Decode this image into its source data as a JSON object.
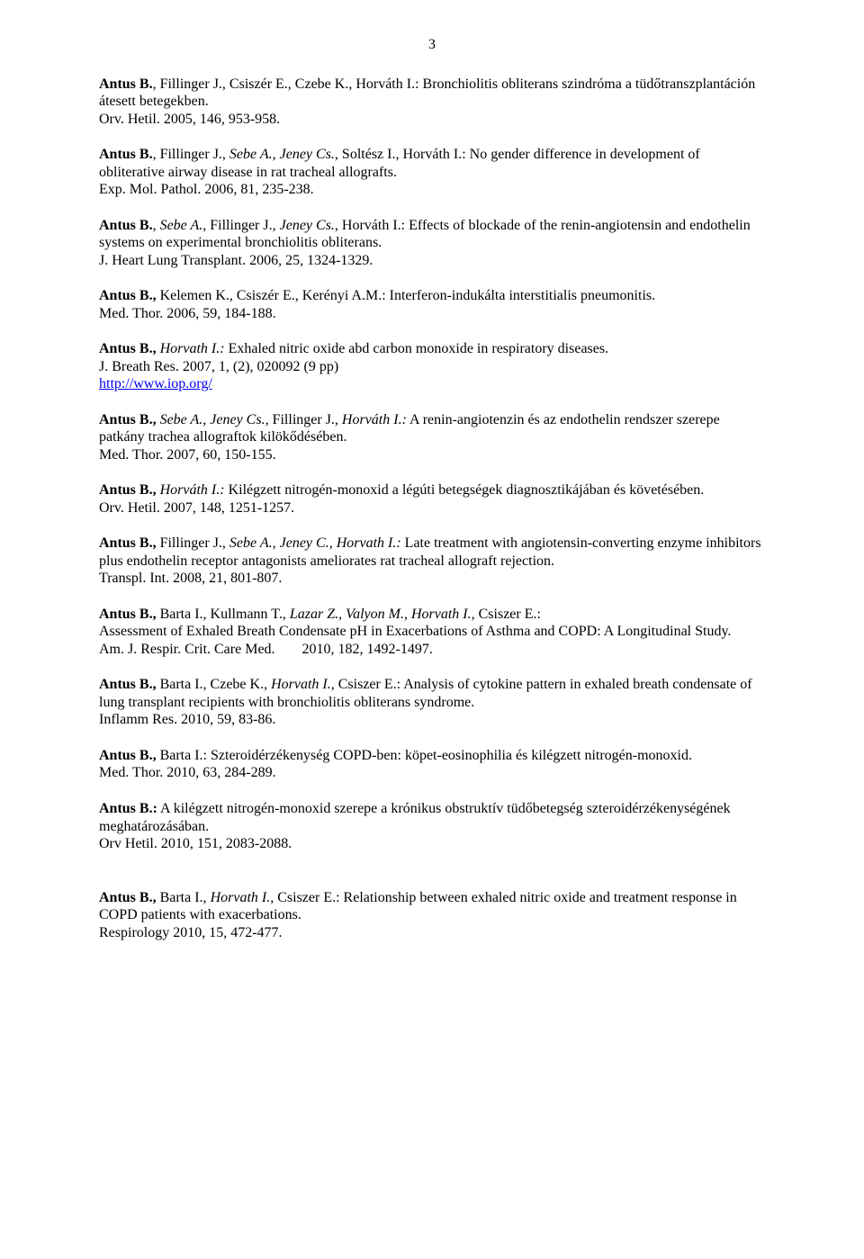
{
  "pageNumber": "3",
  "entries": [
    {
      "lines": [
        [
          {
            "t": "Antus B.",
            "b": true
          },
          {
            "t": ", Fillinger J., Csiszér E., Czebe K., Horváth I.: Bronchiolitis obliterans szindróma a tüdőtranszplantáción átesett betegekben."
          }
        ],
        [
          {
            "t": "Orv. Hetil. 2005, 146, 953-958."
          }
        ]
      ]
    },
    {
      "lines": [
        [
          {
            "t": "Antus B.",
            "b": true
          },
          {
            "t": ", Fillinger J., "
          },
          {
            "t": "Sebe A., Jeney Cs.",
            "i": true
          },
          {
            "t": ", Soltész I., Horváth I.: No gender difference in development of obliterative airway disease in rat tracheal allografts."
          }
        ],
        [
          {
            "t": "Exp. Mol. Pathol. 2006, 81, 235-238."
          }
        ]
      ]
    },
    {
      "lines": [
        [
          {
            "t": "Antus B.",
            "b": true
          },
          {
            "t": ", "
          },
          {
            "t": "Sebe A.",
            "i": true
          },
          {
            "t": ", Fillinger J., "
          },
          {
            "t": "Jeney Cs.",
            "i": true
          },
          {
            "t": ", Horváth I.: Effects of blockade of the renin-angiotensin and endothelin systems on experimental bronchiolitis obliterans."
          }
        ],
        [
          {
            "t": "J. Heart Lung Transplant. 2006, 25, 1324-1329."
          }
        ]
      ]
    },
    {
      "lines": [
        [
          {
            "t": "Antus B.,",
            "b": true
          },
          {
            "t": " Kelemen K., Csiszér E., Kerényi A.M.: Interferon-indukálta interstitialis pneumonitis."
          }
        ],
        [
          {
            "t": "Med. Thor. 2006, 59, 184-188."
          }
        ]
      ]
    },
    {
      "lines": [
        [
          {
            "t": "Antus B.,",
            "b": true
          },
          {
            "t": " "
          },
          {
            "t": "Horvath I.:",
            "i": true
          },
          {
            "t": " Exhaled nitric oxide abd carbon monoxide in respiratory diseases."
          }
        ],
        [
          {
            "t": "J. Breath Res. 2007, 1, (2), 020092 (9 pp)"
          }
        ],
        [
          {
            "link": "http://www.iop.org/"
          }
        ]
      ]
    },
    {
      "lines": [
        [
          {
            "t": "Antus B.,",
            "b": true
          },
          {
            "t": " "
          },
          {
            "t": "Sebe A., Jeney Cs., ",
            "i": true
          },
          {
            "t": "Fillinger J."
          },
          {
            "t": ", Horváth I.:",
            "i": true
          },
          {
            "t": " A renin-angiotenzin és az endothelin rendszer szerepe patkány trachea allograftok kilökődésében."
          }
        ],
        [
          {
            "t": "Med. Thor. 2007, 60, 150-155."
          }
        ]
      ]
    },
    {
      "lines": [
        [
          {
            "t": "Antus B.,",
            "b": true
          },
          {
            "t": " "
          },
          {
            "t": "Horváth I.:",
            "i": true
          },
          {
            "t": " Kilégzett nitrogén-monoxid a légúti betegségek diagnosztikájában és követésében."
          }
        ],
        [
          {
            "t": "Orv. Hetil. 2007, 148, 1251-1257."
          }
        ]
      ]
    },
    {
      "lines": [
        [
          {
            "t": "Antus B.,",
            "b": true
          },
          {
            "t": " Fillinger J., "
          },
          {
            "t": "Sebe A., Jeney C., Horvath I.:",
            "i": true
          },
          {
            "t": " Late treatment with angiotensin-converting enzyme inhibitors plus endothelin receptor antagonists ameliorates rat tracheal allograft rejection."
          }
        ],
        [
          {
            "t": "Transpl. Int. 2008, 21, 801-807."
          }
        ]
      ]
    },
    {
      "lines": [
        [
          {
            "t": "Antus B.,",
            "b": true
          },
          {
            "t": " Barta I., Kullmann T., "
          },
          {
            "t": "Lazar Z., Valyon M., Horvath I., ",
            "i": true
          },
          {
            "t": "Csiszer E.:"
          }
        ],
        [
          {
            "t": "Assessment of Exhaled Breath Condensate pH in Exacerbations of Asthma and COPD: A Longitudinal Study."
          }
        ],
        [
          {
            "t": "Am. J. Respir. Crit. Care Med."
          },
          {
            "gap": true
          },
          {
            "t": "2010, 182, 1492-1497."
          }
        ]
      ]
    },
    {
      "lines": [
        [
          {
            "t": "Antus B.,",
            "b": true
          },
          {
            "t": " Barta I., Czebe K., "
          },
          {
            "t": "Horvath I., ",
            "i": true
          },
          {
            "t": "Csiszer E.: Analysis of cytokine pattern in exhaled breath condensate of lung transplant recipients with bronchiolitis obliterans syndrome."
          }
        ],
        [
          {
            "t": "Inflamm Res. 2010, 59, 83-86."
          }
        ]
      ]
    },
    {
      "lines": [
        [
          {
            "t": "Antus B.,",
            "b": true
          },
          {
            "t": " Barta I.: Szteroidérzékenység COPD-ben: köpet-eosinophilia és kilégzett nitrogén-monoxid."
          }
        ],
        [
          {
            "t": "Med. Thor. 2010, 63, 284-289."
          }
        ]
      ]
    },
    {
      "lines": [
        [
          {
            "t": "Antus B.:",
            "b": true
          },
          {
            "t": " A kilégzett nitrogén-monoxid szerepe a krónikus obstruktív tüdőbetegség szteroidérzékenységének meghatározásában."
          }
        ],
        [
          {
            "t": "Orv Hetil. 2010, 151, 2083-2088."
          }
        ]
      ]
    },
    {
      "extraGap": true,
      "lines": [
        [
          {
            "t": "Antus B.,",
            "b": true
          },
          {
            "t": " Barta I., "
          },
          {
            "t": "Horvath I., ",
            "i": true
          },
          {
            "t": "Csiszer E.: Relationship between exhaled nitric oxide and treatment response in COPD patients with exacerbations."
          }
        ],
        [
          {
            "t": "Respirology 2010, 15, 472-477."
          }
        ]
      ]
    }
  ]
}
